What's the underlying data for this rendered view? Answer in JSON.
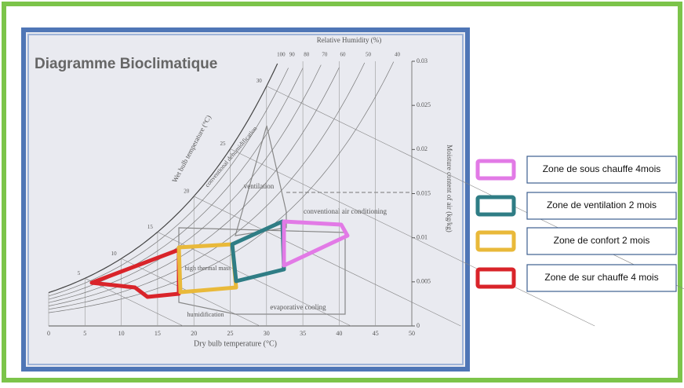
{
  "diagram": {
    "title": "Diagramme Bioclimatique",
    "rh_axis_title": "Relative Humidity (%)",
    "rh_ticks": [
      100,
      90,
      80,
      70,
      60,
      50,
      40
    ],
    "x_axis_title": "Dry bulb temperature (°C)",
    "x_ticks": [
      0,
      5,
      10,
      15,
      20,
      25,
      30,
      35,
      40,
      45,
      50
    ],
    "wet_bulb_title": "Wet bulb temperature (°C)",
    "wet_bulb_ticks": [
      5,
      10,
      15,
      20,
      25,
      30
    ],
    "y_axis_title": "Moisture content of air (kg/kg)",
    "y_ticks": [
      0,
      0.005,
      0.01,
      0.015,
      0.02,
      0.025,
      0.03
    ],
    "zones": [
      "ventilation",
      "conventional air conditioning",
      "high thermal mass",
      "evaporative cooling",
      "humidification",
      "conventional dehumidification"
    ]
  },
  "legend": {
    "items": [
      {
        "label": "Zone de sous  chauffe 4mois",
        "color": "#e27ae6"
      },
      {
        "label": "Zone de ventilation 2 mois",
        "color": "#2f7d85"
      },
      {
        "label": "Zone de confort 2 mois",
        "color": "#e9b93a"
      },
      {
        "label": "Zone de sur chauffe 4 mois",
        "color": "#d9242a"
      }
    ]
  }
}
